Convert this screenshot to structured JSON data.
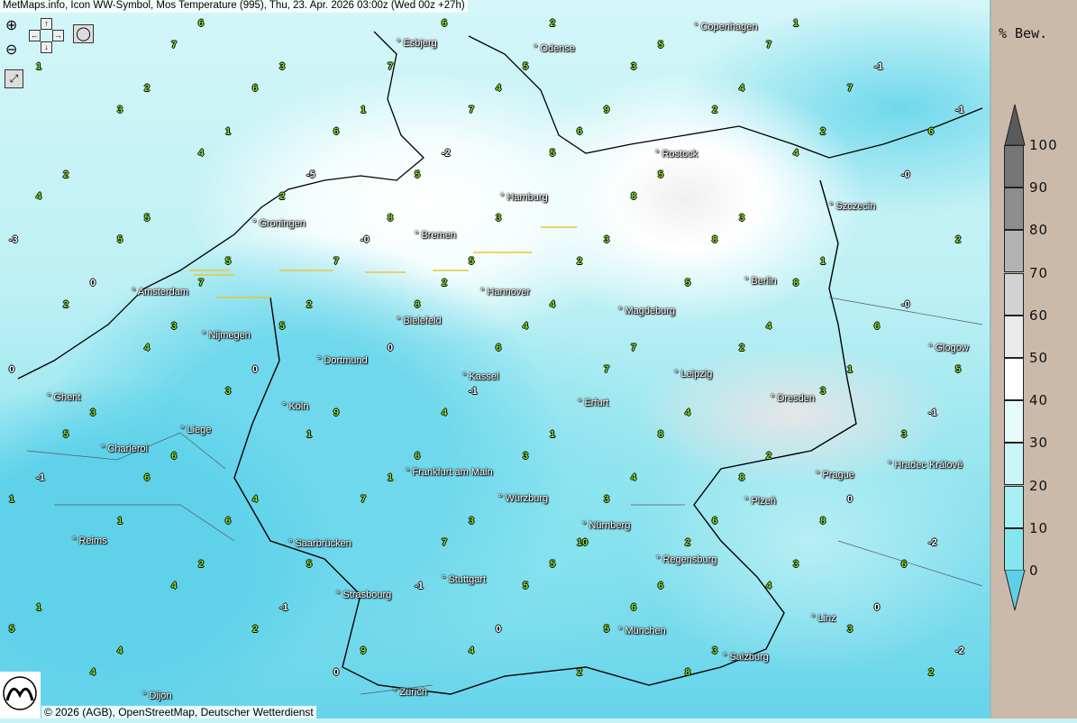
{
  "header": {
    "title": "MetMaps.info, Icon WW-Symbol, Mos Temperature (995), Thu, 23. Apr. 2026 03:00z (Wed 00z +27h)"
  },
  "controls": {
    "zoom_in": "zoom-in-icon",
    "zoom_out": "zoom-out-icon",
    "pan": "pan-arrows-icon",
    "screenshot": "camera-icon",
    "fullscreen": "fullscreen-icon"
  },
  "footer": {
    "copyright": "© 2026 (AGB), OpenStreetMap, Deutscher Wetterdienst",
    "logo_text": "METMAPS"
  },
  "legend": {
    "title": "% Bew.",
    "labels": [
      "100",
      "90",
      "80",
      "70",
      "60",
      "50",
      "40",
      "30",
      "20",
      "10",
      "0"
    ],
    "colors": [
      "#757575",
      "#8e8e8e",
      "#b3b3b3",
      "#d3d3d3",
      "#ebebeb",
      "#ffffff",
      "#e6fbfc",
      "#c9f6f9",
      "#a6f0f5",
      "#86e6ee",
      "#5fd2ea"
    ]
  },
  "cities": [
    "Esbjerg",
    "Odense",
    "Copenhagen",
    "Rostock",
    "Szczecin",
    "Hamburg",
    "Groningen",
    "Bremen",
    "Amsterdam",
    "Hannover",
    "Berlin",
    "Bielefeld",
    "Magdeburg",
    "Nijmegen",
    "Dortmund",
    "Kassel",
    "Leipzig",
    "Glogow",
    "Ghent",
    "Köln",
    "Erfurt",
    "Dresden",
    "Liege",
    "Charleroi",
    "Frankfurt am Main",
    "Prague",
    "Hradec Králové",
    "Würzburg",
    "Plzeň",
    "Reims",
    "Nürnberg",
    "Saarbrücken",
    "Regensburg",
    "Stuttgart",
    "Strasbourg",
    "Linz",
    "München",
    "Salzburg",
    "Zürich",
    "Dijon"
  ],
  "temperatures": [
    "7",
    "7",
    "7",
    "8",
    "7",
    "7",
    "6",
    "5",
    "5",
    "5",
    "8",
    "8",
    "8",
    "8",
    "8",
    "7",
    "8",
    "8",
    "7",
    "6",
    "6",
    "6",
    "5",
    "5",
    "4",
    "5",
    "4",
    "5",
    "6",
    "7",
    "7",
    "6",
    "6",
    "5",
    "5",
    "6",
    "5",
    "4",
    "4",
    "3",
    "3",
    "2",
    "2",
    "3",
    "3",
    "2",
    "2",
    "2",
    "4",
    "4",
    "3",
    "3",
    "3",
    "2",
    "2",
    "1",
    "1",
    "2",
    "3",
    "4",
    "4",
    "4",
    "3",
    "2",
    "2",
    "1",
    "0",
    "-0",
    "1",
    "2",
    "3",
    "4",
    "4",
    "5",
    "6",
    "7",
    "6",
    "5",
    "4",
    "3",
    "3",
    "2",
    "1",
    "1",
    "0",
    "-1",
    "-0",
    "-2",
    "-1",
    "0",
    "1",
    "2",
    "3",
    "4",
    "5",
    "6",
    "6",
    "5",
    "4",
    "3",
    "2",
    "1",
    "0",
    "-1",
    "-2",
    "-1",
    "0",
    "1",
    "2",
    "3",
    "4",
    "5",
    "5",
    "6",
    "4",
    "4",
    "3",
    "2",
    "1",
    "0",
    "-0",
    "-1",
    "-2",
    "-3",
    "-1",
    "0",
    "1",
    "2",
    "3",
    "2",
    "1",
    "0",
    "-1",
    "-5",
    "9",
    "9",
    "8",
    "6",
    "6",
    "5",
    "5",
    "4",
    "10",
    "9",
    "7",
    "6"
  ]
}
